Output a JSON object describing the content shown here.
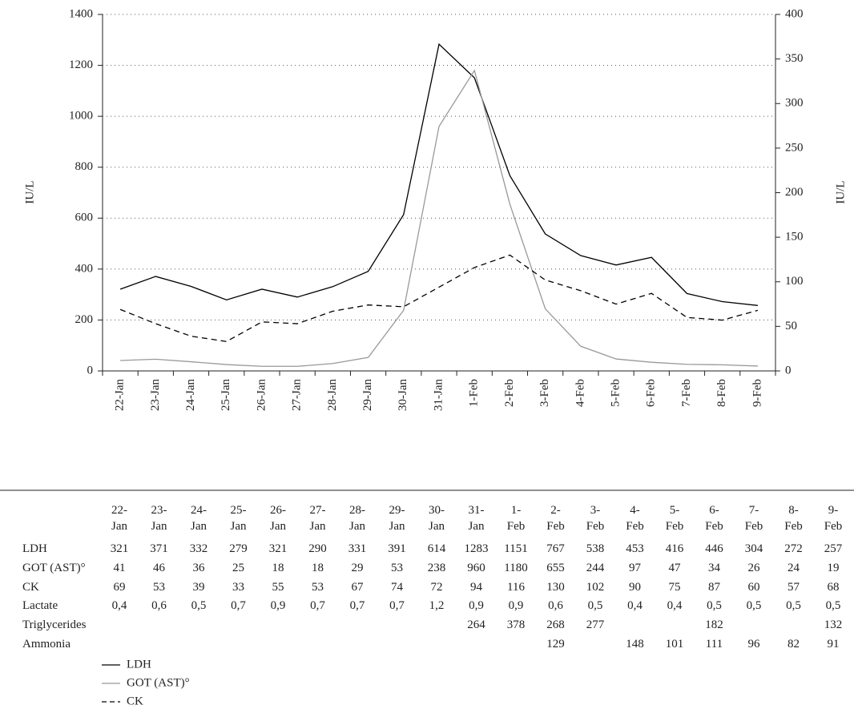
{
  "chart_data": {
    "type": "line",
    "categories": [
      "22-Jan",
      "23-Jan",
      "24-Jan",
      "25-Jan",
      "26-Jan",
      "27-Jan",
      "28-Jan",
      "29-Jan",
      "30-Jan",
      "31-Jan",
      "1-Feb",
      "2-Feb",
      "3-Feb",
      "4-Feb",
      "5-Feb",
      "6-Feb",
      "7-Feb",
      "8-Feb",
      "9-Feb"
    ],
    "series": [
      {
        "name": "LDH",
        "color": "#000000",
        "dash": "solid",
        "values": [
          321,
          371,
          332,
          279,
          321,
          290,
          331,
          391,
          614,
          1283,
          1151,
          767,
          538,
          453,
          416,
          446,
          304,
          272,
          257
        ]
      },
      {
        "name": "GOT (AST)°",
        "color": "#999999",
        "dash": "solid",
        "values": [
          41,
          46,
          36,
          25,
          18,
          18,
          29,
          53,
          238,
          960,
          1180,
          655,
          244,
          97,
          47,
          34,
          26,
          24,
          19
        ]
      },
      {
        "name": "CK",
        "color": "#000000",
        "dash": "dashed",
        "axis": "y2",
        "values": [
          69,
          53,
          39,
          33,
          55,
          53,
          67,
          74,
          72,
          94,
          116,
          130,
          102,
          90,
          75,
          87,
          60,
          57,
          68
        ]
      }
    ],
    "ylabel": "IU/L",
    "y2label": "IU/L",
    "ylim": [
      0,
      1400
    ],
    "yticks": [
      0,
      200,
      400,
      600,
      800,
      1000,
      1200,
      1400
    ],
    "y2lim": [
      0,
      400
    ],
    "y2ticks": [
      0,
      50,
      100,
      150,
      200,
      250,
      300,
      350,
      400
    ],
    "grid": true,
    "legend": "bottom-left"
  },
  "table": {
    "rows": [
      {
        "label": "Lactate",
        "values": [
          "0,4",
          "0,6",
          "0,5",
          "0,7",
          "0,9",
          "0,7",
          "0,7",
          "0,7",
          "1,2",
          "0,9",
          "0,9",
          "0,6",
          "0,5",
          "0,4",
          "0,4",
          "0,5",
          "0,5",
          "0,5",
          "0,5"
        ]
      },
      {
        "label": "Triglycerides",
        "values": [
          null,
          null,
          null,
          null,
          null,
          null,
          null,
          null,
          null,
          264,
          378,
          268,
          277,
          null,
          null,
          182,
          null,
          null,
          132
        ]
      },
      {
        "label": "Ammonia",
        "values": [
          null,
          null,
          null,
          null,
          null,
          null,
          null,
          null,
          null,
          null,
          null,
          129,
          null,
          148,
          101,
          111,
          96,
          82,
          91
        ]
      }
    ]
  }
}
